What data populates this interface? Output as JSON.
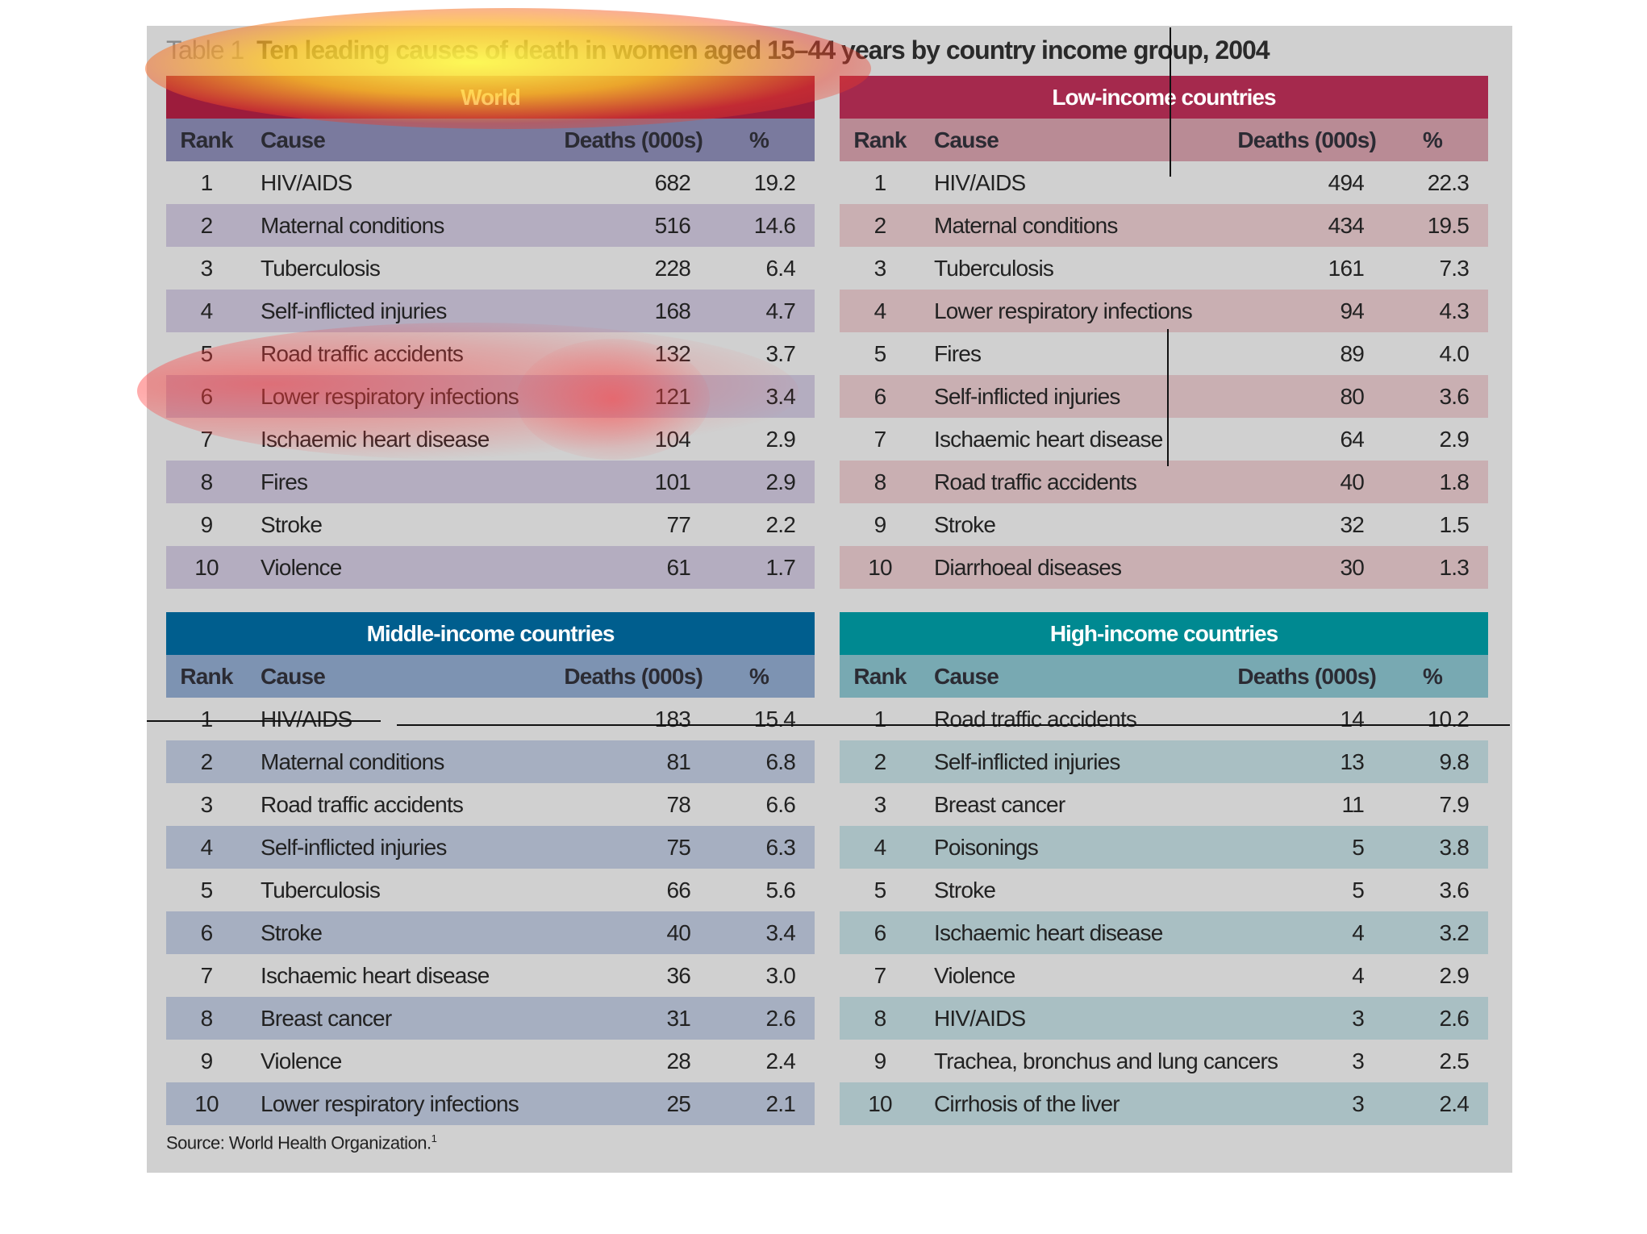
{
  "title": {
    "number": "Table 1",
    "text": "Ten leading causes of death in women aged 15–44 years by country income group, 2004"
  },
  "headers": {
    "rank": "Rank",
    "cause": "Cause",
    "deaths": "Deaths (000s)",
    "pct": "%"
  },
  "tables": {
    "world": {
      "title": "World",
      "rows": [
        {
          "rank": "1",
          "cause": "HIV/AIDS",
          "deaths": "682",
          "pct": "19.2"
        },
        {
          "rank": "2",
          "cause": "Maternal conditions",
          "deaths": "516",
          "pct": "14.6"
        },
        {
          "rank": "3",
          "cause": "Tuberculosis",
          "deaths": "228",
          "pct": "6.4"
        },
        {
          "rank": "4",
          "cause": "Self-inflicted injuries",
          "deaths": "168",
          "pct": "4.7"
        },
        {
          "rank": "5",
          "cause": "Road traffic accidents",
          "deaths": "132",
          "pct": "3.7"
        },
        {
          "rank": "6",
          "cause": "Lower respiratory infections",
          "deaths": "121",
          "pct": "3.4"
        },
        {
          "rank": "7",
          "cause": "Ischaemic heart disease",
          "deaths": "104",
          "pct": "2.9"
        },
        {
          "rank": "8",
          "cause": "Fires",
          "deaths": "101",
          "pct": "2.9"
        },
        {
          "rank": "9",
          "cause": "Stroke",
          "deaths": "77",
          "pct": "2.2"
        },
        {
          "rank": "10",
          "cause": "Violence",
          "deaths": "61",
          "pct": "1.7"
        }
      ]
    },
    "low": {
      "title": "Low-income countries",
      "rows": [
        {
          "rank": "1",
          "cause": "HIV/AIDS",
          "deaths": "494",
          "pct": "22.3"
        },
        {
          "rank": "2",
          "cause": "Maternal conditions",
          "deaths": "434",
          "pct": "19.5"
        },
        {
          "rank": "3",
          "cause": "Tuberculosis",
          "deaths": "161",
          "pct": "7.3"
        },
        {
          "rank": "4",
          "cause": "Lower respiratory infections",
          "deaths": "94",
          "pct": "4.3"
        },
        {
          "rank": "5",
          "cause": "Fires",
          "deaths": "89",
          "pct": "4.0"
        },
        {
          "rank": "6",
          "cause": "Self-inflicted injuries",
          "deaths": "80",
          "pct": "3.6"
        },
        {
          "rank": "7",
          "cause": "Ischaemic heart disease",
          "deaths": "64",
          "pct": "2.9"
        },
        {
          "rank": "8",
          "cause": "Road traffic accidents",
          "deaths": "40",
          "pct": "1.8"
        },
        {
          "rank": "9",
          "cause": "Stroke",
          "deaths": "32",
          "pct": "1.5"
        },
        {
          "rank": "10",
          "cause": "Diarrhoeal diseases",
          "deaths": "30",
          "pct": "1.3"
        }
      ]
    },
    "middle": {
      "title": "Middle-income countries",
      "rows": [
        {
          "rank": "1",
          "cause": "HIV/AIDS",
          "deaths": "183",
          "pct": "15.4"
        },
        {
          "rank": "2",
          "cause": "Maternal conditions",
          "deaths": "81",
          "pct": "6.8"
        },
        {
          "rank": "3",
          "cause": "Road traffic accidents",
          "deaths": "78",
          "pct": "6.6"
        },
        {
          "rank": "4",
          "cause": "Self-inflicted injuries",
          "deaths": "75",
          "pct": "6.3"
        },
        {
          "rank": "5",
          "cause": "Tuberculosis",
          "deaths": "66",
          "pct": "5.6"
        },
        {
          "rank": "6",
          "cause": "Stroke",
          "deaths": "40",
          "pct": "3.4"
        },
        {
          "rank": "7",
          "cause": "Ischaemic heart disease",
          "deaths": "36",
          "pct": "3.0"
        },
        {
          "rank": "8",
          "cause": "Breast cancer",
          "deaths": "31",
          "pct": "2.6"
        },
        {
          "rank": "9",
          "cause": "Violence",
          "deaths": "28",
          "pct": "2.4"
        },
        {
          "rank": "10",
          "cause": "Lower respiratory infections",
          "deaths": "25",
          "pct": "2.1"
        }
      ]
    },
    "high": {
      "title": "High-income countries",
      "rows": [
        {
          "rank": "1",
          "cause": "Road traffic accidents",
          "deaths": "14",
          "pct": "10.2"
        },
        {
          "rank": "2",
          "cause": "Self-inflicted injuries",
          "deaths": "13",
          "pct": "9.8"
        },
        {
          "rank": "3",
          "cause": "Breast cancer",
          "deaths": "11",
          "pct": "7.9"
        },
        {
          "rank": "4",
          "cause": "Poisonings",
          "deaths": "5",
          "pct": "3.8"
        },
        {
          "rank": "5",
          "cause": "Stroke",
          "deaths": "5",
          "pct": "3.6"
        },
        {
          "rank": "6",
          "cause": "Ischaemic heart disease",
          "deaths": "4",
          "pct": "3.2"
        },
        {
          "rank": "7",
          "cause": "Violence",
          "deaths": "4",
          "pct": "2.9"
        },
        {
          "rank": "8",
          "cause": "HIV/AIDS",
          "deaths": "3",
          "pct": "2.6"
        },
        {
          "rank": "9",
          "cause": "Trachea, bronchus and lung cancers",
          "deaths": "3",
          "pct": "2.5"
        },
        {
          "rank": "10",
          "cause": "Cirrhosis of the liver",
          "deaths": "3",
          "pct": "2.4"
        }
      ]
    }
  },
  "source": {
    "text": "Source: World Health Organization.",
    "footnote": "1"
  }
}
